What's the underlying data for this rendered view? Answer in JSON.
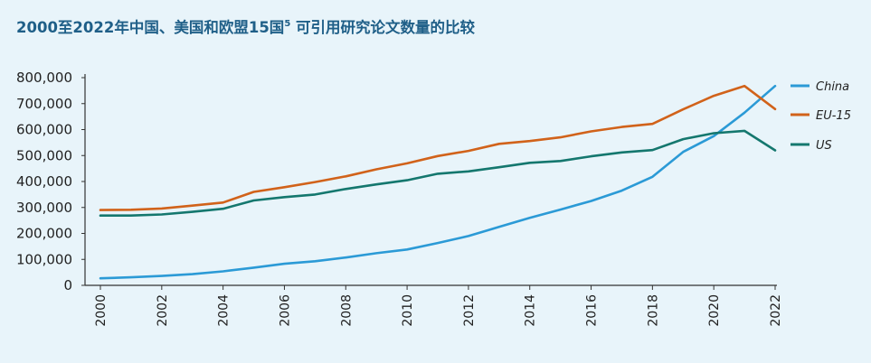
{
  "chart_data": {
    "type": "line",
    "title": "2000至2022年中国、美国和欧盟15国",
    "title_superscript": "5",
    "title_suffix": " 可引用研究论文数量的比较",
    "xlabel": "",
    "ylabel": "",
    "x": [
      2000,
      2001,
      2002,
      2003,
      2004,
      2005,
      2006,
      2007,
      2008,
      2009,
      2010,
      2011,
      2012,
      2013,
      2014,
      2015,
      2016,
      2017,
      2018,
      2019,
      2020,
      2021,
      2022
    ],
    "x_ticks": [
      "2000",
      "2002",
      "2004",
      "2006",
      "2008",
      "2010",
      "2012",
      "2014",
      "2016",
      "2018",
      "2020",
      "2022"
    ],
    "ylim": [
      0,
      800000
    ],
    "y_ticks": [
      "0",
      "100,000",
      "200,000",
      "300,000",
      "400,000",
      "500,000",
      "600,000",
      "700,000",
      "800,000"
    ],
    "grid": false,
    "legend_position": "right",
    "series": [
      {
        "name": "China",
        "color": "#2b9ad6",
        "values": [
          27000,
          31000,
          36000,
          43000,
          54000,
          68000,
          83000,
          93000,
          107000,
          124000,
          138000,
          163000,
          190000,
          225000,
          260000,
          292000,
          325000,
          365000,
          418000,
          514000,
          575000,
          665000,
          768000
        ]
      },
      {
        "name": "EU-15",
        "color": "#d1621a",
        "values": [
          290000,
          291000,
          296000,
          307000,
          319000,
          360000,
          378000,
          398000,
          420000,
          447000,
          470000,
          498000,
          518000,
          545000,
          556000,
          570000,
          593000,
          610000,
          622000,
          678000,
          730000,
          768000,
          679000
        ]
      },
      {
        "name": "US",
        "color": "#14776e",
        "values": [
          269000,
          269000,
          273000,
          283000,
          295000,
          327000,
          340000,
          350000,
          371000,
          389000,
          405000,
          430000,
          439000,
          455000,
          472000,
          479000,
          497000,
          512000,
          521000,
          563000,
          586000,
          595000,
          520000
        ]
      }
    ]
  }
}
